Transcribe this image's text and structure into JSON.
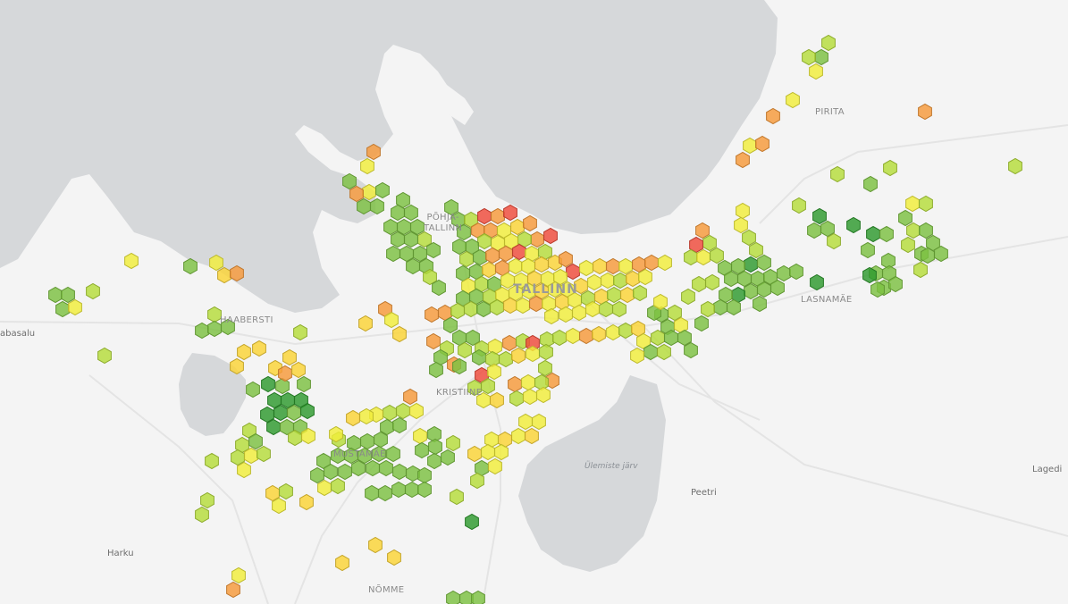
{
  "map": {
    "colors": {
      "land": "#f4f4f4",
      "water": "#d6d8da",
      "roads": "#e3e3e3",
      "scale": [
        "#2e9a2e",
        "#7cc142",
        "#b6dd3a",
        "#f2ee3a",
        "#fbd436",
        "#f79a3a",
        "#ef4a3a"
      ]
    },
    "labels": [
      {
        "id": "tallinn",
        "text": "TALLINN",
        "style": "big"
      },
      {
        "id": "pohja-tallinn",
        "text": "PÕHJA-\nTALLINN",
        "style": "normal"
      },
      {
        "id": "pirita",
        "text": "PIRITA",
        "style": "normal"
      },
      {
        "id": "lasnamae",
        "text": "LASNAMÄE",
        "style": "normal"
      },
      {
        "id": "haabersti",
        "text": "HAABERSTI",
        "style": "normal"
      },
      {
        "id": "kristiine",
        "text": "KRISTIINE",
        "style": "normal"
      },
      {
        "id": "mustamae",
        "text": "MUSTAMÄE",
        "style": "normal"
      },
      {
        "id": "nomme",
        "text": "NÕMME",
        "style": "normal"
      },
      {
        "id": "ulemiste",
        "text": "Ülemiste järv",
        "style": "water"
      },
      {
        "id": "peetri",
        "text": "Peetri",
        "style": "town"
      },
      {
        "id": "harku",
        "text": "Harku",
        "style": "town"
      },
      {
        "id": "lagedi",
        "text": "Lagedi",
        "style": "town"
      },
      {
        "id": "tabasalu",
        "text": "abasalu",
        "style": "town"
      }
    ]
  }
}
